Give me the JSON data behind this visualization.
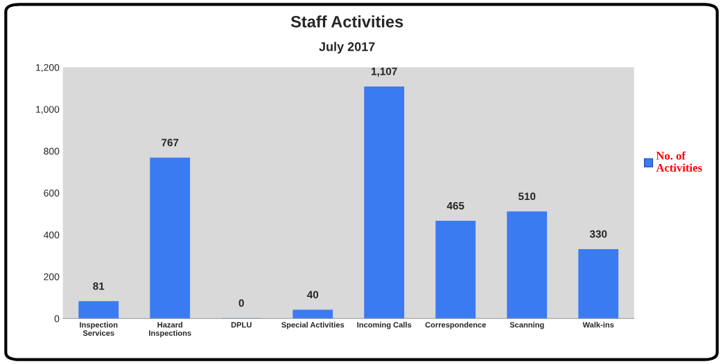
{
  "chart_data": {
    "type": "bar",
    "title": "Staff Activities",
    "subtitle": "July 2017",
    "categories": [
      "Inspection\nServices",
      "Hazard\nInspections",
      "DPLU",
      "Special Activities",
      "Incoming Calls",
      "Correspondence",
      "Scanning",
      "Walk-ins"
    ],
    "series": [
      {
        "name": "No. of\nActivities",
        "color": "#3b7bf2",
        "values": [
          81,
          767,
          0,
          40,
          1107,
          465,
          510,
          330
        ]
      }
    ],
    "value_labels": [
      "81",
      "767",
      "0",
      "40",
      "1,107",
      "465",
      "510",
      "330"
    ],
    "ylim": [
      0,
      1200
    ],
    "yticks": [
      0,
      200,
      400,
      600,
      800,
      {
        "value": 1000,
        "label": "1,000"
      },
      {
        "value": 1200,
        "label": "1,200"
      }
    ],
    "grid": false,
    "legend": "right"
  }
}
